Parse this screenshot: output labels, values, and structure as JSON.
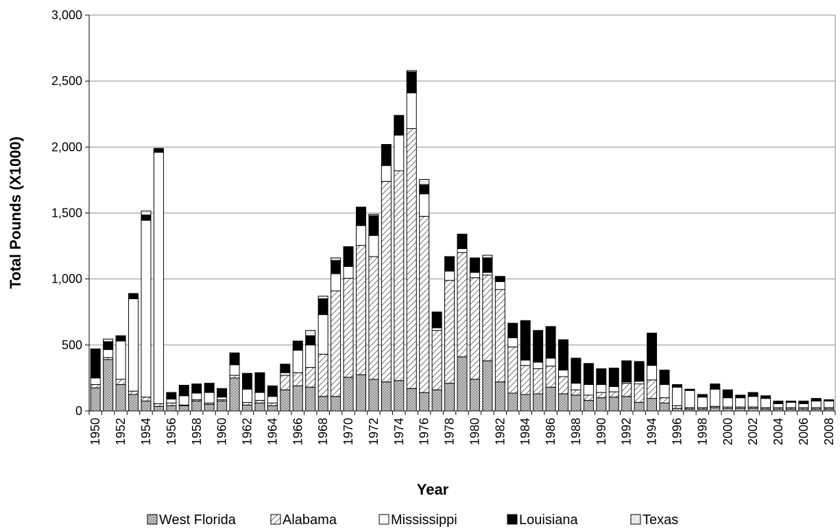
{
  "chart_data": {
    "type": "bar",
    "stacked": true,
    "title": "",
    "xlabel": "Year",
    "ylabel": "Total Pounds (X1000)",
    "ylim": [
      0,
      3000
    ],
    "yticks": [
      0,
      500,
      1000,
      1500,
      2000,
      2500,
      3000
    ],
    "ytick_labels": [
      "0",
      "500",
      "1,000",
      "1,500",
      "2,000",
      "2,500",
      "3,000"
    ],
    "grid": true,
    "legend_position": "bottom",
    "x": [
      1950,
      1951,
      1952,
      1953,
      1954,
      1955,
      1956,
      1957,
      1958,
      1959,
      1960,
      1961,
      1962,
      1963,
      1964,
      1965,
      1966,
      1967,
      1968,
      1969,
      1970,
      1971,
      1972,
      1973,
      1974,
      1975,
      1976,
      1977,
      1978,
      1979,
      1980,
      1981,
      1982,
      1983,
      1984,
      1985,
      1986,
      1987,
      1988,
      1989,
      1990,
      1991,
      1992,
      1993,
      1994,
      1995,
      1996,
      1997,
      1998,
      1999,
      2000,
      2001,
      2002,
      2003,
      2004,
      2005,
      2006,
      2007,
      2008
    ],
    "xtick_labels": [
      "1950",
      "1952",
      "1954",
      "1956",
      "1958",
      "1960",
      "1962",
      "1964",
      "1966",
      "1968",
      "1970",
      "1972",
      "1974",
      "1976",
      "1978",
      "1980",
      "1982",
      "1984",
      "1986",
      "1988",
      "1990",
      "1992",
      "1994",
      "1996",
      "1998",
      "2000",
      "2002",
      "2004",
      "2006",
      "2008"
    ],
    "series": [
      {
        "name": "West Florida",
        "pattern": "dots",
        "values": [
          175,
          390,
          200,
          125,
          75,
          35,
          40,
          40,
          75,
          50,
          75,
          250,
          45,
          60,
          40,
          160,
          190,
          180,
          110,
          110,
          255,
          275,
          240,
          220,
          230,
          170,
          140,
          160,
          210,
          410,
          240,
          380,
          220,
          135,
          125,
          130,
          180,
          130,
          120,
          80,
          100,
          105,
          110,
          65,
          95,
          60,
          20,
          15,
          15,
          25,
          20,
          20,
          20,
          15,
          15,
          15,
          15,
          15,
          15
        ]
      },
      {
        "name": "Alabama",
        "pattern": "hatch",
        "values": [
          25,
          15,
          40,
          25,
          30,
          20,
          20,
          5,
          10,
          10,
          10,
          20,
          20,
          20,
          20,
          110,
          100,
          150,
          320,
          800,
          750,
          980,
          930,
          1520,
          1590,
          1970,
          1335,
          450,
          780,
          790,
          770,
          650,
          700,
          350,
          220,
          190,
          160,
          130,
          40,
          40,
          40,
          40,
          100,
          140,
          140,
          40,
          20,
          10,
          10,
          10,
          10,
          10,
          10,
          10,
          10,
          10,
          10,
          10,
          10
        ]
      },
      {
        "name": "Mississippi",
        "pattern": "white",
        "values": [
          50,
          60,
          290,
          700,
          1340,
          1905,
          30,
          70,
          50,
          80,
          20,
          80,
          100,
          60,
          50,
          20,
          170,
          170,
          300,
          130,
          90,
          150,
          160,
          120,
          270,
          270,
          170,
          20,
          70,
          30,
          40,
          20,
          60,
          70,
          40,
          50,
          60,
          50,
          50,
          80,
          60,
          40,
          10,
          20,
          110,
          100,
          140,
          130,
          80,
          130,
          70,
          70,
          80,
          70,
          30,
          40,
          30,
          50,
          50
        ]
      },
      {
        "name": "Louisiana",
        "pattern": "black",
        "values": [
          220,
          60,
          40,
          40,
          40,
          30,
          50,
          80,
          70,
          70,
          65,
          90,
          120,
          150,
          80,
          65,
          70,
          70,
          120,
          100,
          150,
          140,
          150,
          160,
          150,
          160,
          70,
          120,
          110,
          110,
          110,
          110,
          40,
          110,
          300,
          240,
          240,
          230,
          190,
          160,
          120,
          140,
          160,
          150,
          245,
          110,
          20,
          10,
          20,
          40,
          60,
          20,
          30,
          20,
          20,
          10,
          20,
          20,
          10
        ]
      },
      {
        "name": "Texas",
        "pattern": "light",
        "values": [
          0,
          20,
          0,
          0,
          30,
          0,
          0,
          0,
          0,
          0,
          0,
          0,
          0,
          0,
          0,
          0,
          0,
          40,
          20,
          20,
          0,
          0,
          10,
          0,
          0,
          10,
          40,
          0,
          0,
          0,
          0,
          20,
          0,
          0,
          0,
          0,
          0,
          0,
          0,
          0,
          0,
          0,
          0,
          0,
          0,
          0,
          0,
          0,
          0,
          0,
          0,
          0,
          0,
          0,
          0,
          0,
          0,
          0,
          0
        ]
      }
    ]
  }
}
